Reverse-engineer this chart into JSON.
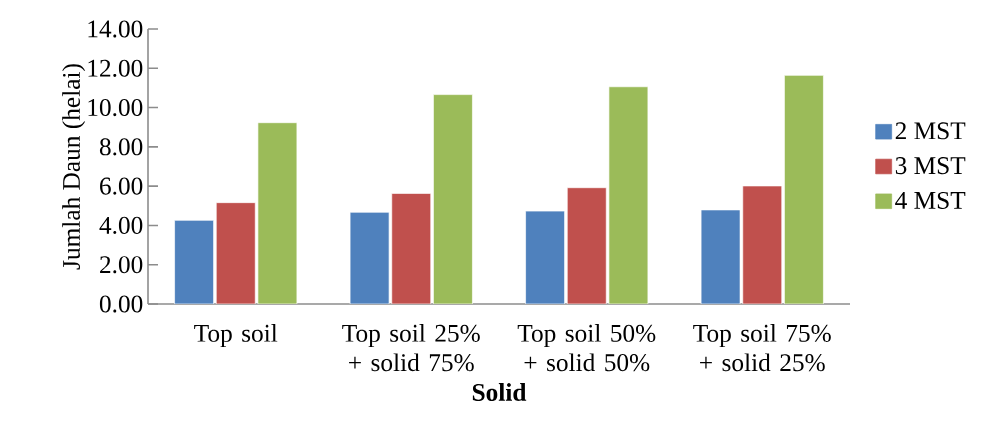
{
  "chart_data": {
    "type": "bar",
    "xlabel": "Solid",
    "ylabel": "Jumlah Daun (helai)",
    "categories": [
      "Top soil",
      "Top soil 25% + solid 75%",
      "Top soil 50% + solid 50%",
      "Top soil 75% + solid 25%"
    ],
    "series": [
      {
        "name": "2 MST",
        "color": "#4f81bd",
        "values": [
          4.26,
          4.67,
          4.73,
          4.79
        ]
      },
      {
        "name": "3 MST",
        "color": "#c0504d",
        "values": [
          5.16,
          5.63,
          5.92,
          6.01
        ]
      },
      {
        "name": "4 MST",
        "color": "#9bbb59",
        "values": [
          9.23,
          10.66,
          11.06,
          11.64
        ]
      }
    ],
    "ylim": [
      0,
      14
    ],
    "yticks": [
      {
        "value": 0,
        "label": "0.00"
      },
      {
        "value": 2,
        "label": "2.00"
      },
      {
        "value": 4,
        "label": "4.00"
      },
      {
        "value": 6,
        "label": "6.00"
      },
      {
        "value": 8,
        "label": "8.00"
      },
      {
        "value": 10,
        "label": "10.00"
      },
      {
        "value": 12,
        "label": "12.00"
      },
      {
        "value": 14,
        "label": "14.00"
      }
    ],
    "grid": false,
    "legend": "right"
  }
}
